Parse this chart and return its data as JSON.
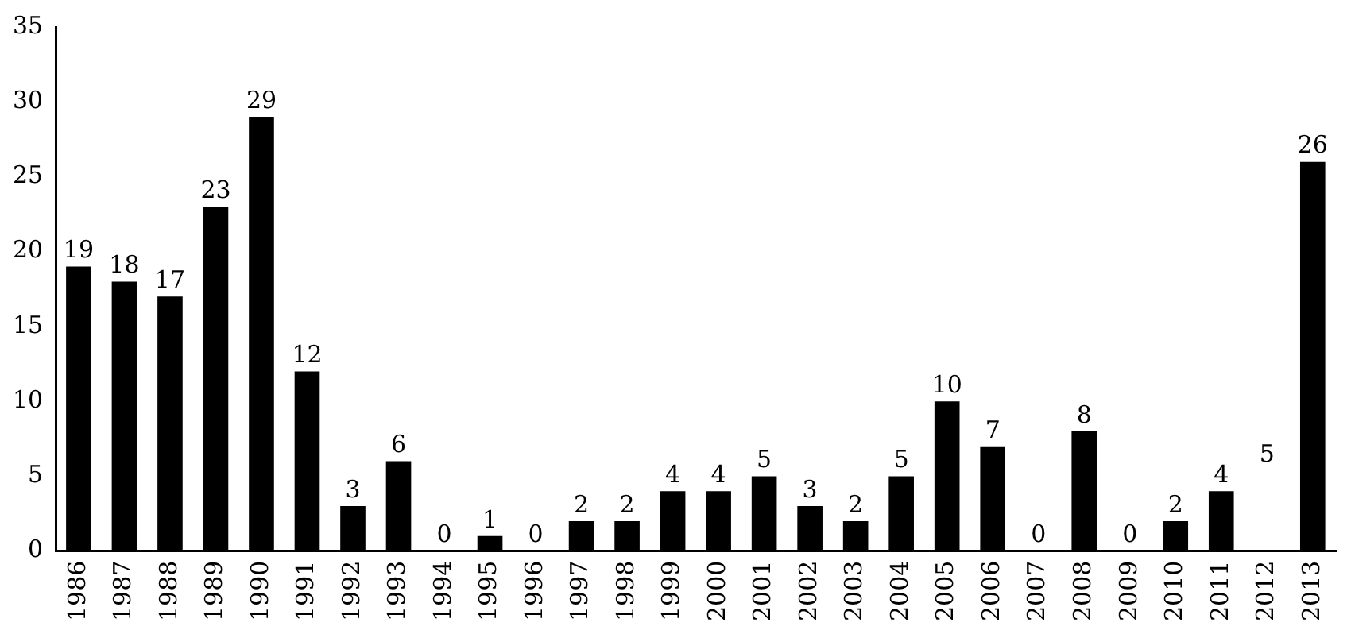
{
  "chart_data": {
    "type": "bar",
    "categories": [
      "1986",
      "1987",
      "1988",
      "1989",
      "1990",
      "1991",
      "1992",
      "1993",
      "1994",
      "1995",
      "1996",
      "1997",
      "1998",
      "1999",
      "2000",
      "2001",
      "2002",
      "2003",
      "2004",
      "2005",
      "2006",
      "2007",
      "2008",
      "2009",
      "2010",
      "2011",
      "2012",
      "2013"
    ],
    "values": [
      19,
      18,
      17,
      23,
      29,
      12,
      3,
      6,
      0,
      1,
      0,
      2,
      2,
      4,
      4,
      5,
      3,
      2,
      5,
      10,
      7,
      0,
      8,
      0,
      2,
      4,
      null,
      26
    ],
    "color": "#000000",
    "annotations": [
      "5"
    ],
    "ylim": [
      0,
      35
    ],
    "yticks": [
      0,
      5,
      10,
      15,
      20,
      25,
      30,
      35
    ],
    "grid": false,
    "legend": false,
    "data_labels": true
  }
}
